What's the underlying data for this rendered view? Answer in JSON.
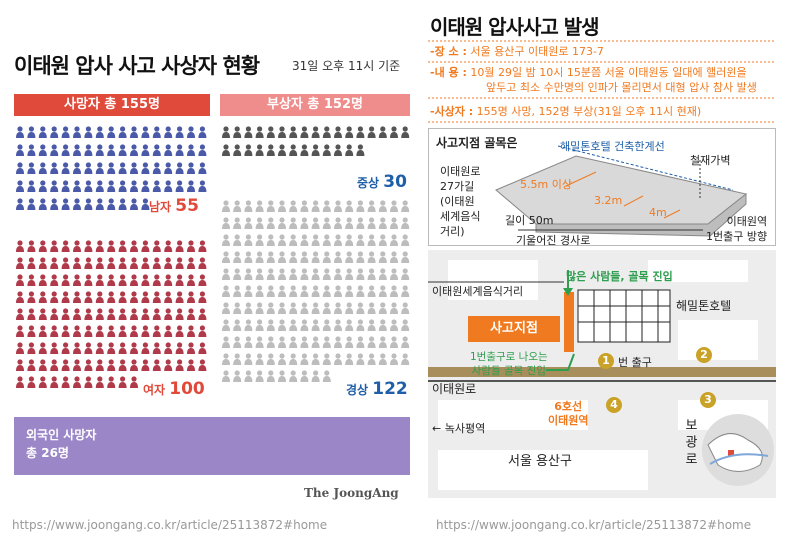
{
  "left": {
    "title": "이태원 압사 사고 사상자 현황",
    "basis": "31일 오후 11시 기준",
    "dead_header": "사망자 총 155명",
    "injured_header": "부상자 총 152명",
    "male": {
      "label": "남자 ",
      "count": "55"
    },
    "female": {
      "label": "여자 ",
      "count": "100"
    },
    "serious": {
      "label": "중상 ",
      "count": "30"
    },
    "light": {
      "label": "경상 ",
      "count": "122"
    },
    "foreign_line1": "외국인 사망자",
    "foreign_line2": "총 26명",
    "brand": "The JoongAng",
    "url": "https://www.joongang.co.kr/article/25113872#home",
    "colors": {
      "male": "#4a5aa8",
      "female": "#b03a4a",
      "injured": "#7a7a7a",
      "serious": "#555555",
      "light": "#bdbdbd",
      "foreign": "#ffffff"
    }
  },
  "right": {
    "title": "이태원 압사사고 발생",
    "place_key": "-장   소 :",
    "place_val": "서울 용산구 이태원로 173-7",
    "content_key": "-내   용 :",
    "content_val1": "10월 29일 밤 10시 15분쯤 서울 이태원동 일대에 핼러윈을",
    "content_val2": "앞두고 최소 수만명의 인파가 몰리면서 대형 압사 참사 발생",
    "casualty_key": "-사상자 :",
    "casualty_val": "155명 사망, 152명 부상(31일 오후 11시 현재)",
    "diagram": {
      "title": "사고지점 골목은",
      "hotel_line": "해밀톤호텔 건축한계선",
      "wall": "철재가벽",
      "road_line1": "이태원로",
      "road_line2": "27가길",
      "road_line3": "(이태원",
      "road_line4": "세계음식",
      "road_line5": "거리)",
      "w1": "5.5m 이상",
      "w2": "3.2m",
      "w3": "4m",
      "length": "길이 50m",
      "slope": "기울어진 경사로",
      "station_line1": "이태원역",
      "station_line2": "1번출구 방향"
    },
    "map": {
      "street": "이태원세계음식거리",
      "crowd_in": "많은 사람들, 골목 진입",
      "hotel": "해밀톤호텔",
      "accident": "사고지점",
      "exit_crowd1": "1번출구로 나오는",
      "exit_crowd2": "사람들 골목 진입",
      "exit_num": "1",
      "exit_label": "번 출구",
      "exit2": "2",
      "exit3": "3",
      "exit4": "4",
      "road": "이태원로",
      "line": "6호선",
      "station": "이태원역",
      "nogsapyeong": "녹사평역",
      "gu": "서울 용산구",
      "bogwang": "보광로",
      "arrow": "→"
    },
    "url": "https://www.joongang.co.kr/article/25113872#home"
  }
}
